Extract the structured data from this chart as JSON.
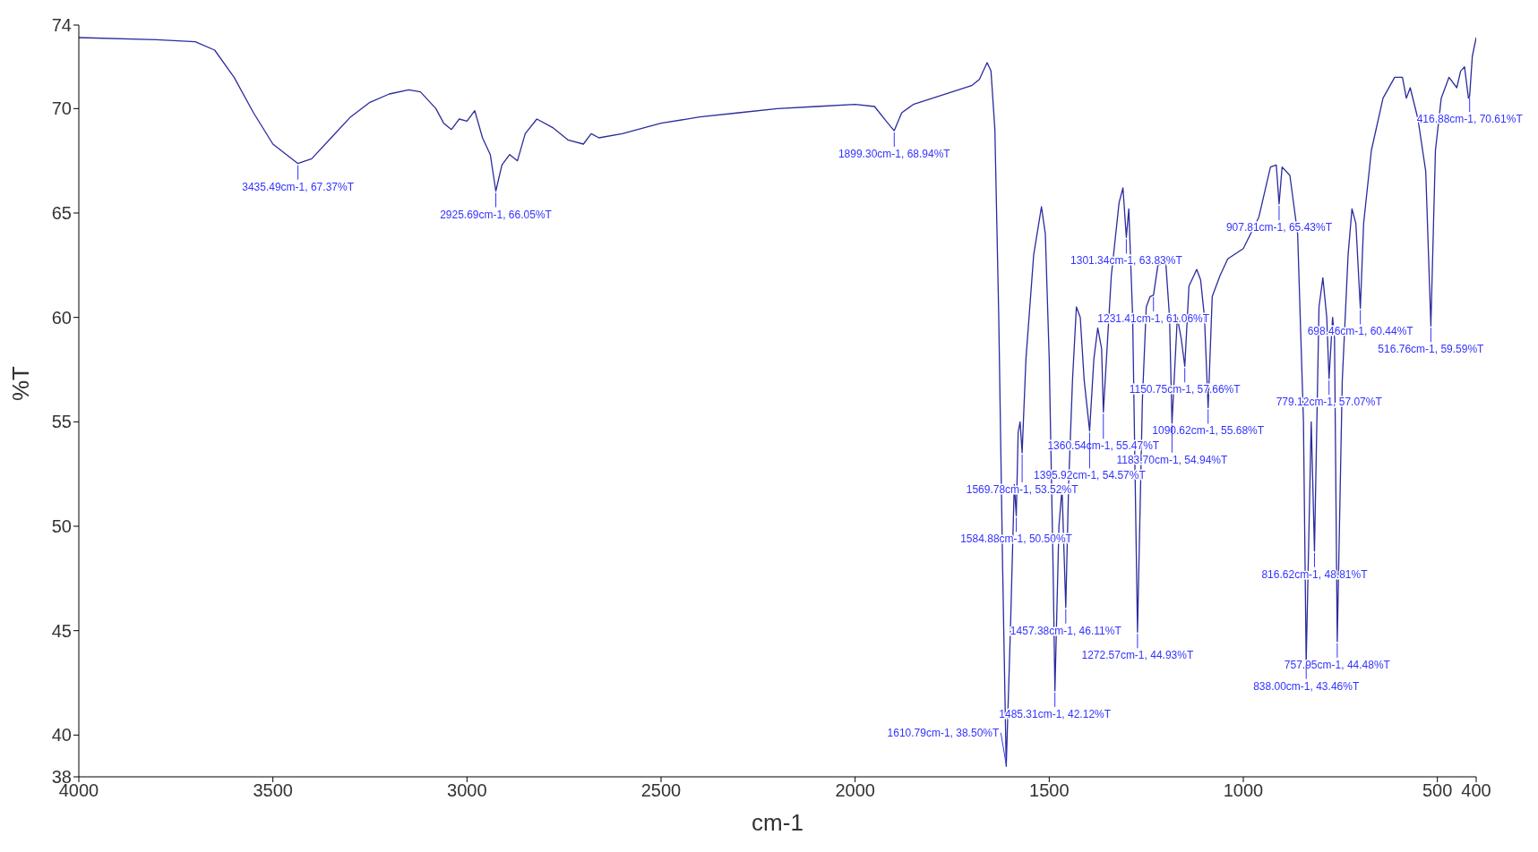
{
  "chart_data": {
    "type": "line",
    "xlabel": "cm-1",
    "ylabel": "%T",
    "xlim": [
      4000,
      400
    ],
    "xticks": [
      4000,
      3500,
      3000,
      2500,
      2000,
      1500,
      1000,
      500,
      400
    ],
    "ylim": [
      38,
      74
    ],
    "yticks": [
      38,
      40,
      45,
      50,
      55,
      60,
      65,
      70,
      74
    ],
    "grid": false,
    "marker": "none",
    "line_style": "solid",
    "series": [
      {
        "color": "#2b2b9e",
        "x": [
          4000,
          3800,
          3700,
          3650,
          3600,
          3550,
          3500,
          3435.49,
          3400,
          3350,
          3300,
          3250,
          3200,
          3150,
          3120,
          3080,
          3060,
          3040,
          3020,
          3000,
          2980,
          2960,
          2940,
          2925.69,
          2910,
          2890,
          2870,
          2850,
          2820,
          2780,
          2740,
          2700,
          2680,
          2660,
          2600,
          2500,
          2400,
          2300,
          2200,
          2100,
          2000,
          1950,
          1920,
          1899.3,
          1880,
          1850,
          1800,
          1750,
          1700,
          1680,
          1660,
          1650,
          1640,
          1630,
          1620,
          1610.79,
          1600,
          1590,
          1584.88,
          1580,
          1575,
          1569.78,
          1560,
          1540,
          1520,
          1510,
          1500,
          1490,
          1485.31,
          1475,
          1467,
          1457.38,
          1450,
          1440,
          1430,
          1420,
          1410,
          1395.92,
          1385,
          1375,
          1365,
          1360.54,
          1340,
          1320,
          1310,
          1301.34,
          1295,
          1285,
          1272.57,
          1260,
          1250,
          1240,
          1231.41,
          1220,
          1200,
          1190,
          1183.7,
          1170,
          1160,
          1150.75,
          1140,
          1120,
          1110,
          1100,
          1090.62,
          1080,
          1060,
          1040,
          1000,
          960,
          930,
          915,
          907.81,
          900,
          880,
          860,
          845,
          838,
          825,
          816.62,
          805,
          795,
          785,
          779.12,
          770,
          765,
          757.95,
          745,
          730,
          720,
          710,
          698.46,
          690,
          670,
          640,
          610,
          590,
          580,
          570,
          550,
          530,
          516.76,
          505,
          490,
          470,
          450,
          440,
          430,
          420,
          416.88,
          410,
          400
        ],
        "values": [
          73.4,
          73.3,
          73.2,
          72.8,
          71.5,
          69.8,
          68.3,
          67.37,
          67.6,
          68.6,
          69.6,
          70.3,
          70.7,
          70.9,
          70.8,
          70.0,
          69.3,
          69.0,
          69.5,
          69.4,
          69.9,
          68.6,
          67.8,
          66.05,
          67.3,
          67.8,
          67.5,
          68.8,
          69.5,
          69.1,
          68.5,
          68.3,
          68.8,
          68.6,
          68.8,
          69.3,
          69.6,
          69.8,
          70.0,
          70.1,
          70.2,
          70.1,
          69.4,
          68.94,
          69.8,
          70.2,
          70.5,
          70.8,
          71.1,
          71.4,
          72.2,
          71.8,
          69,
          60,
          48,
          38.5,
          45,
          52,
          50.5,
          54.5,
          55,
          53.52,
          58,
          63,
          65.3,
          64,
          58,
          48,
          42.12,
          50,
          51.8,
          46.11,
          52,
          57,
          60.5,
          60,
          57,
          54.57,
          58,
          59.5,
          58.5,
          55.47,
          62,
          65.5,
          66.2,
          63.83,
          65.2,
          60,
          44.93,
          56,
          60.5,
          61,
          61.06,
          62.5,
          62.7,
          60,
          54.94,
          60,
          59,
          57.66,
          61.5,
          62.3,
          61.8,
          60,
          55.68,
          61,
          62,
          62.8,
          63.3,
          64.8,
          67.2,
          67.3,
          65.43,
          67.2,
          66.8,
          64,
          55,
          43.46,
          55,
          48.81,
          60.5,
          61.9,
          60,
          57.07,
          60,
          59,
          44.48,
          57,
          63,
          65.2,
          64.5,
          60.44,
          64.5,
          68,
          70.5,
          71.5,
          71.5,
          70.5,
          71,
          69.5,
          67,
          59.59,
          68,
          70.5,
          71.5,
          71,
          71.8,
          72,
          70.5,
          70.61,
          72.5,
          73.4
        ]
      }
    ],
    "annotations": [
      {
        "text": "3435.49cm-1, 67.37%T",
        "x": 3435.49,
        "y": 67.37
      },
      {
        "text": "2925.69cm-1, 66.05%T",
        "x": 2925.69,
        "y": 66.05
      },
      {
        "text": "1899.30cm-1, 68.94%T",
        "x": 1899.3,
        "y": 68.94
      },
      {
        "text": "416.88cm-1, 70.61%T",
        "x": 416.88,
        "y": 70.61
      },
      {
        "text": "907.81cm-1, 65.43%T",
        "x": 907.81,
        "y": 65.43
      },
      {
        "text": "1301.34cm-1, 63.83%T",
        "x": 1301.34,
        "y": 63.83
      },
      {
        "text": "1231.41cm-1, 61.06%T",
        "x": 1231.41,
        "y": 61.06
      },
      {
        "text": "698.46cm-1, 60.44%T",
        "x": 698.46,
        "y": 60.44
      },
      {
        "text": "516.76cm-1, 59.59%T",
        "x": 516.76,
        "y": 59.59
      },
      {
        "text": "1150.75cm-1, 57.66%T",
        "x": 1150.75,
        "y": 57.66
      },
      {
        "text": "779.12cm-1, 57.07%T",
        "x": 779.12,
        "y": 57.07
      },
      {
        "text": "1360.54cm-1, 55.47%T",
        "x": 1360.54,
        "y": 55.47
      },
      {
        "text": "1090.62cm-1, 55.68%T",
        "x": 1090.62,
        "y": 55.68
      },
      {
        "text": "1183.70cm-1, 54.94%T",
        "x": 1183.7,
        "y": 54.94
      },
      {
        "text": "1395.92cm-1, 54.57%T",
        "x": 1395.92,
        "y": 54.57
      },
      {
        "text": "1569.78cm-1, 53.52%T",
        "x": 1569.78,
        "y": 53.52
      },
      {
        "text": "1584.88cm-1, 50.50%T",
        "x": 1584.88,
        "y": 50.5
      },
      {
        "text": "816.62cm-1, 48.81%T",
        "x": 816.62,
        "y": 48.81
      },
      {
        "text": "1457.38cm-1, 46.11%T",
        "x": 1457.38,
        "y": 46.11
      },
      {
        "text": "1272.57cm-1, 44.93%T",
        "x": 1272.57,
        "y": 44.93
      },
      {
        "text": "757.95cm-1, 44.48%T",
        "x": 757.95,
        "y": 44.48
      },
      {
        "text": "838.00cm-1, 43.46%T",
        "x": 838,
        "y": 43.46
      },
      {
        "text": "1485.31cm-1, 42.12%T",
        "x": 1485.31,
        "y": 42.12
      },
      {
        "text": "1610.79cm-1, 38.50%T",
        "x": 1610.79,
        "y": 38.5
      }
    ]
  }
}
